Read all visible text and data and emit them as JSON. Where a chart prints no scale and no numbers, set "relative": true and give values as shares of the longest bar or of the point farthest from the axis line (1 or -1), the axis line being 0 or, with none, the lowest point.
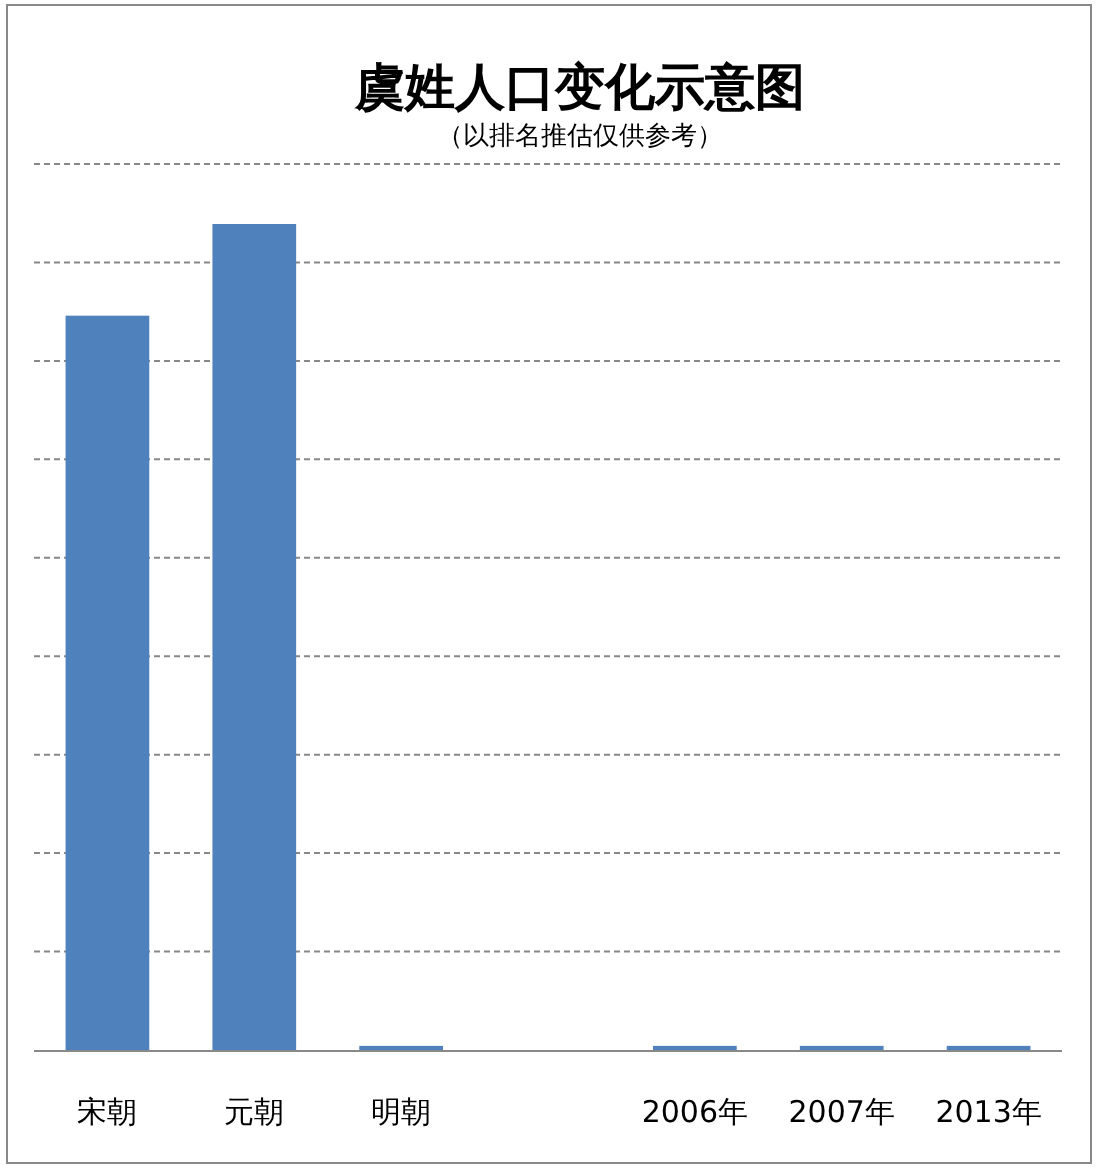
{
  "chart_data": {
    "type": "bar",
    "title": "虞姓人口变化示意图",
    "subtitle": "（以排名推估仅供参考）",
    "relative": true,
    "grid": "y",
    "categories": [
      "宋朝",
      "元朝",
      "明朝",
      null,
      "2006年",
      "2007年",
      "2013年"
    ],
    "values": [
      0.889,
      1,
      0.005,
      null,
      0.005,
      0.005,
      0.005
    ],
    "color": "#4f81bd"
  }
}
